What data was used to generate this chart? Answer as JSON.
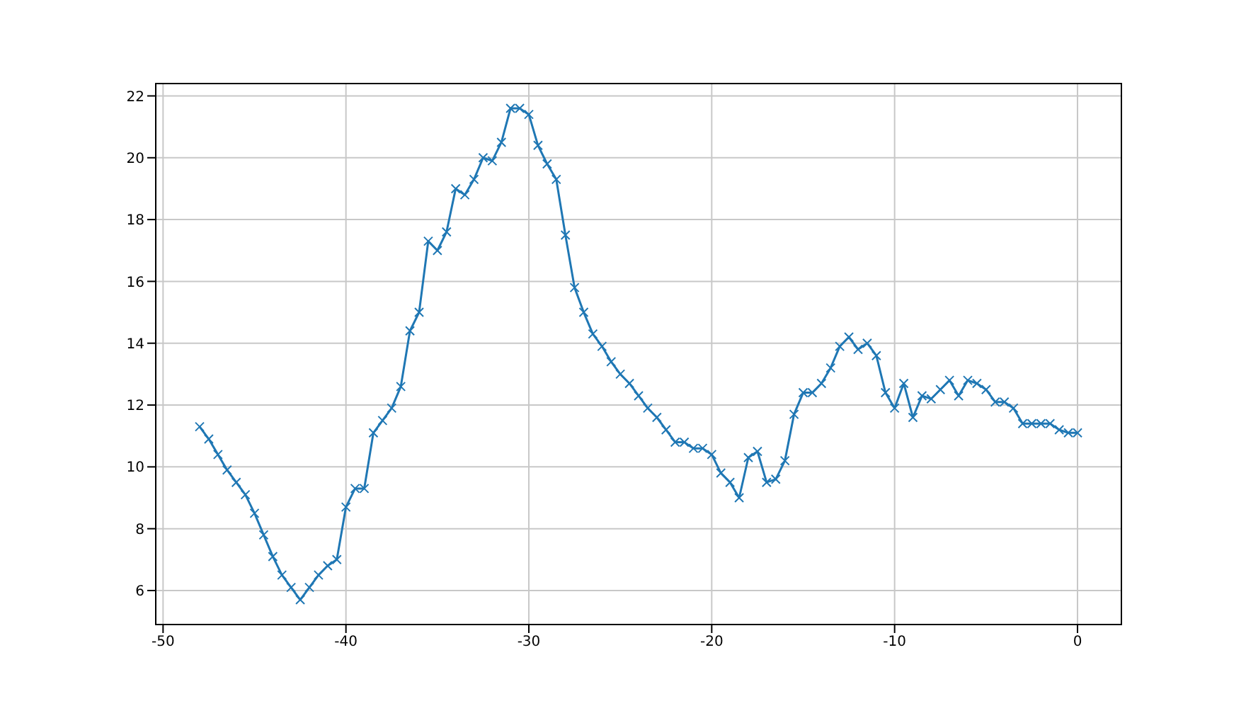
{
  "chart_data": {
    "type": "line",
    "x": [
      -48,
      -47.5,
      -47,
      -46.5,
      -46,
      -45.5,
      -45,
      -44.5,
      -44,
      -43.5,
      -43,
      -42.5,
      -42,
      -41.5,
      -41,
      -40.5,
      -40,
      -39.5,
      -39,
      -38.5,
      -38,
      -37.5,
      -37,
      -36.5,
      -36,
      -35.5,
      -35,
      -34.5,
      -34,
      -33.5,
      -33,
      -32.5,
      -32,
      -31.5,
      -31,
      -30.5,
      -30,
      -29.5,
      -29,
      -28.5,
      -28,
      -27.5,
      -27,
      -26.5,
      -26,
      -25.5,
      -25,
      -24.5,
      -24,
      -23.5,
      -23,
      -22.5,
      -22,
      -21.5,
      -21,
      -20.5,
      -20,
      -19.5,
      -19,
      -18.5,
      -18,
      -17.5,
      -17,
      -16.5,
      -16,
      -15.5,
      -15,
      -14.5,
      -14,
      -13.5,
      -13,
      -12.5,
      -12,
      -11.5,
      -11,
      -10.5,
      -10,
      -9.5,
      -9,
      -8.5,
      -8,
      -7.5,
      -7,
      -6.5,
      -6,
      -5.5,
      -5,
      -4.5,
      -4,
      -3.5,
      -3,
      -2.5,
      -2,
      -1.5,
      -1,
      -0.5,
      0
    ],
    "series": [
      {
        "color": "#1f77b4",
        "values": [
          11.3,
          10.9,
          10.4,
          9.9,
          9.5,
          9.1,
          8.5,
          7.8,
          7.1,
          6.5,
          6.1,
          5.7,
          6.1,
          6.5,
          6.8,
          7.0,
          8.7,
          9.3,
          9.3,
          11.1,
          11.5,
          11.9,
          12.6,
          14.4,
          15.0,
          17.3,
          17.0,
          17.6,
          19.0,
          18.8,
          19.3,
          20.0,
          19.9,
          20.5,
          21.6,
          21.6,
          21.4,
          20.4,
          19.8,
          19.3,
          17.5,
          15.8,
          15.0,
          14.3,
          13.9,
          13.4,
          13.0,
          12.7,
          12.3,
          11.9,
          11.6,
          11.2,
          10.8,
          10.8,
          10.6,
          10.6,
          10.4,
          9.8,
          9.5,
          9.0,
          10.3,
          10.5,
          9.5,
          9.6,
          10.2,
          11.7,
          12.4,
          12.4,
          12.7,
          13.2,
          13.9,
          14.2,
          13.8,
          14.0,
          13.6,
          12.4,
          11.9,
          12.7,
          11.6,
          12.3,
          12.2,
          12.5,
          12.8,
          12.3,
          12.8,
          12.7,
          12.5,
          12.1,
          12.1,
          11.9,
          11.4,
          11.4,
          11.4,
          11.4,
          11.2,
          11.1,
          11.1
        ]
      }
    ],
    "xlim": [
      -50.4,
      2.4
    ],
    "xticks": [
      -50,
      -40,
      -30,
      -20,
      -10,
      0
    ],
    "ylim": [
      4.9,
      22.4
    ],
    "yticks": [
      6,
      8,
      10,
      12,
      14,
      16,
      18,
      20,
      22
    ],
    "grid": true,
    "marker": "cross",
    "line_style": "solid"
  }
}
